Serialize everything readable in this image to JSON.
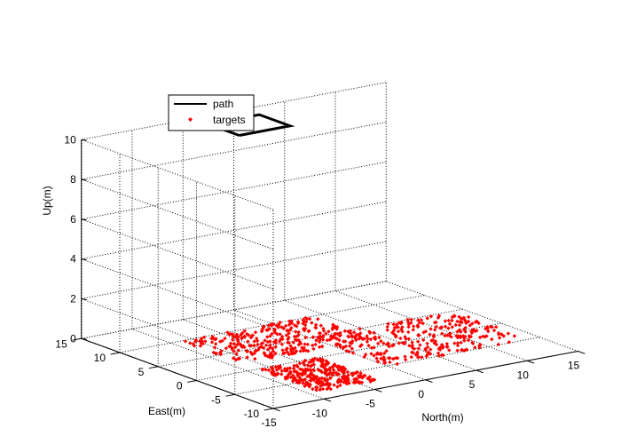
{
  "chart_data": {
    "type": "scatter",
    "projection": "3d",
    "xlabel": "North(m)",
    "ylabel": "East(m)",
    "zlabel": "Up(m)",
    "xlim": [
      -15,
      15
    ],
    "ylim": [
      -10,
      15
    ],
    "zlim": [
      0,
      10
    ],
    "xticks": [
      -15,
      -10,
      -5,
      0,
      5,
      10,
      15
    ],
    "yticks": [
      -10,
      -5,
      0,
      5,
      10,
      15
    ],
    "zticks": [
      0,
      2,
      4,
      6,
      8,
      10
    ],
    "grid": true,
    "legend": {
      "location": "top-left",
      "entries": [
        "path",
        "targets"
      ]
    },
    "series": [
      {
        "name": "path",
        "kind": "line",
        "color": "#000000",
        "x": [
          -4,
          1,
          1,
          -4,
          -4
        ],
        "y": [
          9,
          9,
          13,
          13,
          9
        ],
        "z": [
          10,
          10,
          10,
          10,
          10
        ]
      },
      {
        "name": "targets",
        "kind": "scatter",
        "color": "#ff0000",
        "marker": "diamond",
        "point_count": 900,
        "clusters": [
          {
            "x_range": [
              -9,
              -3
            ],
            "y_range": [
              -8,
              0
            ],
            "z": 0
          },
          {
            "x_range": [
              -9,
              4
            ],
            "y_range": [
              2,
              10
            ],
            "z": 0
          },
          {
            "x_range": [
              0,
              14
            ],
            "y_range": [
              -5,
              5
            ],
            "z": 0
          }
        ]
      }
    ]
  }
}
